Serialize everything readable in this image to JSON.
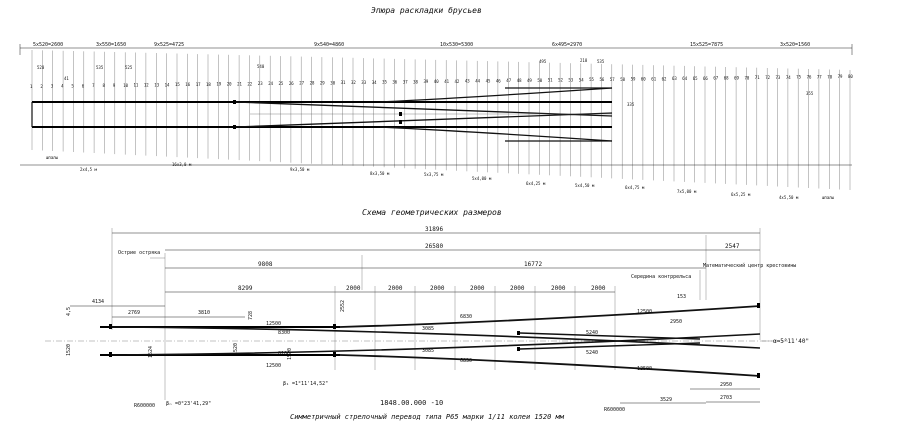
{
  "top_diagram": {
    "title": "Эпюра раскладки брусьев",
    "dimension_groups": [
      "5x520=2600",
      "3x550=1650",
      "9x525=4725",
      "9x540=4860",
      "10x530=5300",
      "6x495=2970",
      "15x525=7875",
      "3x520=1560"
    ],
    "small_dims": [
      "520",
      "41",
      "535",
      "525",
      "540",
      "495",
      "218",
      "535",
      "335",
      "355"
    ],
    "tick_numbers": [
      "1",
      "2",
      "3",
      "4",
      "5",
      "6",
      "7",
      "8",
      "9",
      "10",
      "11",
      "12",
      "13",
      "14",
      "15",
      "16",
      "17",
      "18",
      "19",
      "20",
      "21",
      "22",
      "23",
      "24",
      "25",
      "26",
      "27",
      "28",
      "29",
      "30",
      "31",
      "32",
      "33",
      "34",
      "35",
      "36",
      "37",
      "38",
      "39",
      "40",
      "41",
      "42",
      "43",
      "44",
      "45",
      "46",
      "47",
      "48",
      "49",
      "50",
      "51",
      "52",
      "53",
      "54",
      "55",
      "56",
      "57",
      "58",
      "59",
      "60",
      "61",
      "62",
      "63",
      "64",
      "65",
      "66",
      "67",
      "68",
      "69",
      "70",
      "71",
      "72",
      "73",
      "74",
      "75",
      "76",
      "77",
      "78",
      "79",
      "80"
    ],
    "bottom_labels": [
      "шпалы",
      "2x4,5 м",
      "16x3,0 м",
      "9x3,50 м",
      "8x3,50 м",
      "5x3,75 м",
      "5x4,00 м",
      "6x4,25 м",
      "5x4,50 м",
      "6x4,75 м",
      "7x5,00 м",
      "6x5,25 м",
      "4x5,50 м",
      "шпалы"
    ]
  },
  "bottom_diagram": {
    "title": "Схема геометрических размеров",
    "overall_dims": [
      "31896",
      "26580",
      "2547",
      "9808",
      "16772",
      "8299"
    ],
    "pitch_dims": [
      "2000",
      "2000",
      "2000",
      "2000",
      "2000",
      "2000",
      "2000"
    ],
    "left_dims": [
      "4134",
      "2769",
      "3810",
      "12500",
      "12500",
      "8300",
      "8100",
      "2552"
    ],
    "center_dims": [
      "3085",
      "3085",
      "6830",
      "6830",
      "5240",
      "5240",
      "12500",
      "12500",
      "2950",
      "2950",
      "2703",
      "3529"
    ],
    "small_dims": [
      "1524",
      "1520",
      "1520",
      "728",
      "1520",
      "153",
      "4,5"
    ],
    "callouts": [
      "Острие остряка",
      "Середина контррельса",
      "Математический центр крестовины"
    ],
    "angle_labels": [
      "β₁ =1°11'14,52\"",
      "βₙ =0°23'41,29\"",
      "α=5°11'40\""
    ],
    "radius_labels": [
      "R600000",
      "R600000"
    ],
    "drawing_number": "1848.00.000 -10",
    "caption": "Симметричный стрелочный перевод типа Р65 марки 1/11 колеи 1520 мм"
  }
}
